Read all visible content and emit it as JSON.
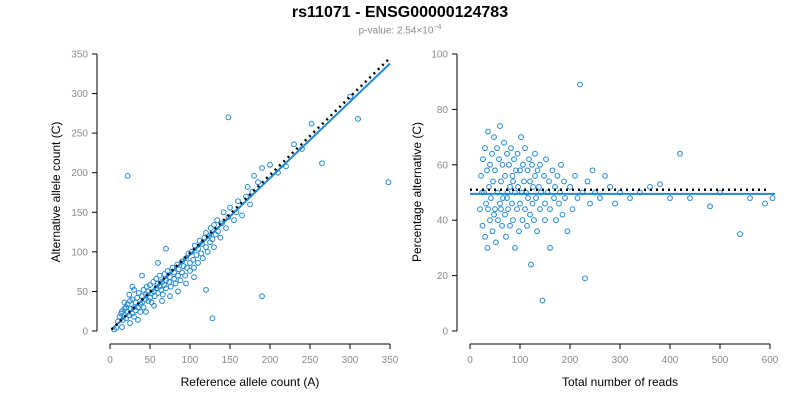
{
  "figure": {
    "title": "rs11071 - ENSG00000124783",
    "subtitle_prefix": "p-value: 2.54×10",
    "subtitle_exponent": "−4"
  },
  "chart_data": [
    {
      "type": "scatter",
      "xlabel": "Reference allele count (A)",
      "ylabel": "Alternative allele count (C)",
      "xlim": [
        0,
        350
      ],
      "ylim": [
        0,
        350
      ],
      "xticks": [
        0,
        50,
        100,
        150,
        200,
        250,
        300,
        350
      ],
      "yticks": [
        0,
        50,
        100,
        150,
        200,
        250,
        300,
        350
      ],
      "point_color": "#1e88d6",
      "grid": false,
      "fit_line": {
        "color": "#1e88d6",
        "style": "solid",
        "points": [
          [
            2,
            2
          ],
          [
            350,
            338
          ]
        ]
      },
      "expected_line": {
        "color": "#000000",
        "style": "dotted",
        "points": [
          [
            2,
            2
          ],
          [
            350,
            345
          ]
        ]
      },
      "points": [
        [
          10,
          12
        ],
        [
          12,
          18
        ],
        [
          14,
          22
        ],
        [
          15,
          25
        ],
        [
          16,
          14
        ],
        [
          18,
          20
        ],
        [
          18,
          28
        ],
        [
          20,
          16
        ],
        [
          20,
          30
        ],
        [
          22,
          24
        ],
        [
          22,
          34
        ],
        [
          24,
          20
        ],
        [
          25,
          38
        ],
        [
          26,
          28
        ],
        [
          28,
          22
        ],
        [
          28,
          40
        ],
        [
          30,
          30
        ],
        [
          30,
          18
        ],
        [
          32,
          36
        ],
        [
          32,
          26
        ],
        [
          34,
          42
        ],
        [
          35,
          30
        ],
        [
          36,
          48
        ],
        [
          38,
          34
        ],
        [
          38,
          24
        ],
        [
          40,
          44
        ],
        [
          40,
          36
        ],
        [
          42,
          52
        ],
        [
          42,
          30
        ],
        [
          44,
          40
        ],
        [
          45,
          46
        ],
        [
          46,
          56
        ],
        [
          48,
          38
        ],
        [
          48,
          50
        ],
        [
          50,
          42
        ],
        [
          50,
          58
        ],
        [
          52,
          48
        ],
        [
          52,
          36
        ],
        [
          54,
          62
        ],
        [
          55,
          50
        ],
        [
          56,
          44
        ],
        [
          58,
          54
        ],
        [
          58,
          66
        ],
        [
          60,
          48
        ],
        [
          60,
          60
        ],
        [
          62,
          56
        ],
        [
          62,
          70
        ],
        [
          64,
          52
        ],
        [
          65,
          62
        ],
        [
          66,
          46
        ],
        [
          68,
          58
        ],
        [
          68,
          72
        ],
        [
          70,
          64
        ],
        [
          70,
          54
        ],
        [
          72,
          76
        ],
        [
          74,
          62
        ],
        [
          75,
          68
        ],
        [
          76,
          56
        ],
        [
          78,
          80
        ],
        [
          80,
          66
        ],
        [
          80,
          74
        ],
        [
          82,
          60
        ],
        [
          84,
          84
        ],
        [
          85,
          70
        ],
        [
          86,
          78
        ],
        [
          88,
          64
        ],
        [
          90,
          88
        ],
        [
          90,
          74
        ],
        [
          92,
          82
        ],
        [
          94,
          70
        ],
        [
          95,
          92
        ],
        [
          96,
          80
        ],
        [
          98,
          98
        ],
        [
          100,
          86
        ],
        [
          100,
          76
        ],
        [
          102,
          100
        ],
        [
          104,
          90
        ],
        [
          105,
          80
        ],
        [
          106,
          108
        ],
        [
          108,
          96
        ],
        [
          110,
          104
        ],
        [
          110,
          86
        ],
        [
          112,
          114
        ],
        [
          114,
          98
        ],
        [
          115,
          110
        ],
        [
          116,
          92
        ],
        [
          118,
          118
        ],
        [
          120,
          106
        ],
        [
          120,
          124
        ],
        [
          122,
          100
        ],
        [
          124,
          120
        ],
        [
          125,
          112
        ],
        [
          126,
          130
        ],
        [
          128,
          116
        ],
        [
          130,
          106
        ],
        [
          130,
          134
        ],
        [
          132,
          122
        ],
        [
          134,
          140
        ],
        [
          135,
          126
        ],
        [
          138,
          118
        ],
        [
          140,
          136
        ],
        [
          142,
          150
        ],
        [
          145,
          130
        ],
        [
          148,
          144
        ],
        [
          150,
          156
        ],
        [
          155,
          140
        ],
        [
          158,
          150
        ],
        [
          160,
          164
        ],
        [
          165,
          146
        ],
        [
          170,
          170
        ],
        [
          172,
          182
        ],
        [
          175,
          160
        ],
        [
          178,
          176
        ],
        [
          180,
          196
        ],
        [
          185,
          188
        ],
        [
          190,
          206
        ],
        [
          200,
          210
        ],
        [
          210,
          200
        ],
        [
          220,
          208
        ],
        [
          230,
          236
        ],
        [
          240,
          230
        ],
        [
          252,
          262
        ],
        [
          265,
          212
        ],
        [
          300,
          296
        ],
        [
          310,
          268
        ],
        [
          348,
          188
        ],
        [
          148,
          270
        ],
        [
          22,
          196
        ],
        [
          190,
          44
        ],
        [
          128,
          16
        ],
        [
          120,
          52
        ],
        [
          70,
          104
        ],
        [
          60,
          86
        ],
        [
          40,
          70
        ],
        [
          30,
          52
        ],
        [
          15,
          5
        ],
        [
          8,
          4
        ],
        [
          5,
          2
        ],
        [
          25,
          10
        ],
        [
          35,
          14
        ],
        [
          45,
          24
        ],
        [
          55,
          32
        ],
        [
          65,
          38
        ],
        [
          75,
          44
        ],
        [
          85,
          50
        ],
        [
          95,
          60
        ],
        [
          105,
          68
        ],
        [
          18,
          36
        ],
        [
          24,
          46
        ],
        [
          28,
          56
        ]
      ]
    },
    {
      "type": "scatter",
      "xlabel": "Total number of reads",
      "ylabel": "Percentage alternative (C)",
      "xlim": [
        0,
        600
      ],
      "ylim": [
        0,
        100
      ],
      "xticks": [
        0,
        100,
        200,
        300,
        400,
        500,
        600
      ],
      "yticks": [
        0,
        20,
        40,
        60,
        80,
        100
      ],
      "point_color": "#1e88d6",
      "grid": false,
      "fit_line": {
        "color": "#1e88d6",
        "style": "solid",
        "points": [
          [
            0,
            49.5
          ],
          [
            610,
            49.5
          ]
        ]
      },
      "expected_line": {
        "color": "#000000",
        "style": "dotted",
        "points": [
          [
            0,
            51
          ],
          [
            600,
            51
          ]
        ]
      },
      "points": [
        [
          20,
          44
        ],
        [
          22,
          56
        ],
        [
          25,
          38
        ],
        [
          26,
          62
        ],
        [
          28,
          50
        ],
        [
          30,
          34
        ],
        [
          30,
          66
        ],
        [
          32,
          46
        ],
        [
          34,
          58
        ],
        [
          35,
          30
        ],
        [
          36,
          72
        ],
        [
          38,
          52
        ],
        [
          40,
          40
        ],
        [
          40,
          60
        ],
        [
          42,
          48
        ],
        [
          44,
          64
        ],
        [
          45,
          36
        ],
        [
          46,
          54
        ],
        [
          48,
          70
        ],
        [
          50,
          44
        ],
        [
          50,
          58
        ],
        [
          52,
          32
        ],
        [
          54,
          66
        ],
        [
          55,
          50
        ],
        [
          56,
          40
        ],
        [
          58,
          62
        ],
        [
          60,
          46
        ],
        [
          60,
          74
        ],
        [
          62,
          54
        ],
        [
          64,
          38
        ],
        [
          65,
          60
        ],
        [
          66,
          48
        ],
        [
          68,
          68
        ],
        [
          70,
          42
        ],
        [
          70,
          56
        ],
        [
          72,
          34
        ],
        [
          74,
          64
        ],
        [
          75,
          50
        ],
        [
          76,
          44
        ],
        [
          78,
          60
        ],
        [
          80,
          52
        ],
        [
          80,
          38
        ],
        [
          82,
          66
        ],
        [
          84,
          46
        ],
        [
          85,
          56
        ],
        [
          86,
          40
        ],
        [
          88,
          62
        ],
        [
          90,
          50
        ],
        [
          90,
          30
        ],
        [
          92,
          58
        ],
        [
          94,
          44
        ],
        [
          95,
          64
        ],
        [
          96,
          52
        ],
        [
          98,
          36
        ],
        [
          100,
          58
        ],
        [
          100,
          46
        ],
        [
          102,
          70
        ],
        [
          104,
          50
        ],
        [
          105,
          40
        ],
        [
          106,
          60
        ],
        [
          108,
          54
        ],
        [
          110,
          44
        ],
        [
          110,
          66
        ],
        [
          112,
          50
        ],
        [
          114,
          38
        ],
        [
          115,
          58
        ],
        [
          116,
          48
        ],
        [
          118,
          62
        ],
        [
          120,
          42
        ],
        [
          120,
          54
        ],
        [
          122,
          24
        ],
        [
          124,
          60
        ],
        [
          125,
          46
        ],
        [
          126,
          52
        ],
        [
          128,
          40
        ],
        [
          130,
          56
        ],
        [
          130,
          64
        ],
        [
          132,
          48
        ],
        [
          134,
          36
        ],
        [
          135,
          58
        ],
        [
          138,
          52
        ],
        [
          140,
          44
        ],
        [
          140,
          60
        ],
        [
          142,
          50
        ],
        [
          145,
          11
        ],
        [
          148,
          56
        ],
        [
          150,
          46
        ],
        [
          150,
          40
        ],
        [
          152,
          62
        ],
        [
          155,
          50
        ],
        [
          158,
          54
        ],
        [
          160,
          44
        ],
        [
          160,
          30
        ],
        [
          165,
          58
        ],
        [
          168,
          48
        ],
        [
          170,
          52
        ],
        [
          172,
          40
        ],
        [
          175,
          56
        ],
        [
          178,
          46
        ],
        [
          180,
          50
        ],
        [
          182,
          60
        ],
        [
          185,
          42
        ],
        [
          188,
          54
        ],
        [
          190,
          48
        ],
        [
          195,
          36
        ],
        [
          200,
          52
        ],
        [
          205,
          44
        ],
        [
          210,
          56
        ],
        [
          215,
          48
        ],
        [
          220,
          89
        ],
        [
          225,
          50
        ],
        [
          230,
          19
        ],
        [
          235,
          54
        ],
        [
          240,
          46
        ],
        [
          245,
          58
        ],
        [
          250,
          50
        ],
        [
          260,
          48
        ],
        [
          270,
          56
        ],
        [
          280,
          52
        ],
        [
          290,
          46
        ],
        [
          300,
          50
        ],
        [
          320,
          48
        ],
        [
          340,
          50
        ],
        [
          360,
          52
        ],
        [
          380,
          53
        ],
        [
          400,
          48
        ],
        [
          420,
          64
        ],
        [
          440,
          48
        ],
        [
          480,
          45
        ],
        [
          500,
          50
        ],
        [
          540,
          35
        ],
        [
          560,
          48
        ],
        [
          590,
          46
        ],
        [
          605,
          48
        ],
        [
          24,
          50
        ],
        [
          36,
          44
        ],
        [
          48,
          42
        ],
        [
          62,
          44
        ],
        [
          74,
          48
        ],
        [
          86,
          54
        ]
      ]
    }
  ]
}
